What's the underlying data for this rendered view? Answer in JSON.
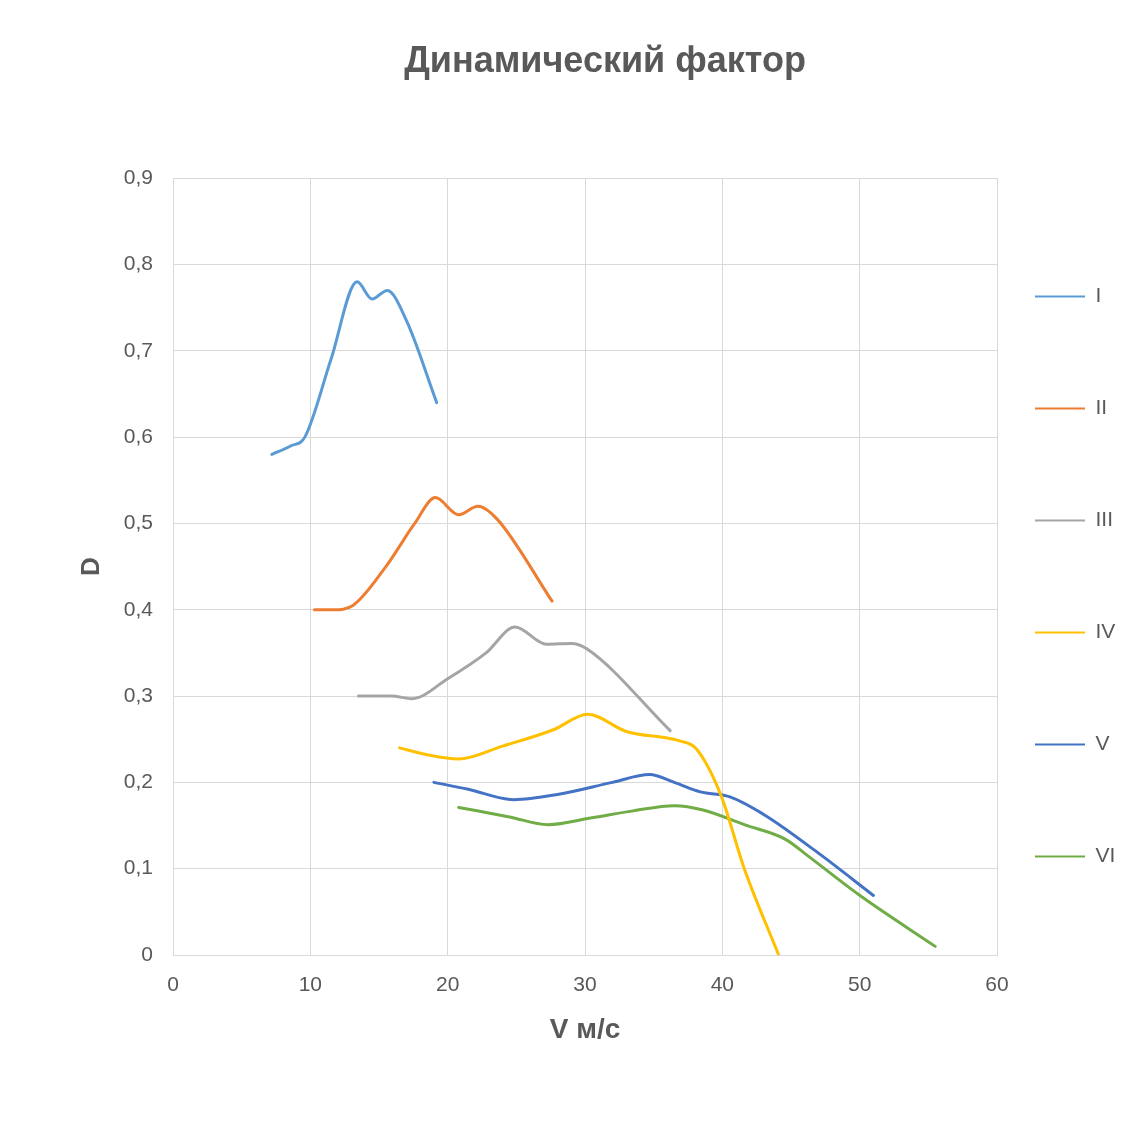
{
  "chart_data": {
    "type": "line",
    "title": "Динамический фактор",
    "xlabel": "V м/с",
    "ylabel": "D",
    "xlim": [
      0,
      60
    ],
    "xticks": [
      0,
      10,
      20,
      30,
      40,
      50,
      60
    ],
    "ylim": [
      0,
      0.9
    ],
    "yticks": [
      0,
      {
        "value": 0.1,
        "label": "0,1"
      },
      {
        "value": 0.2,
        "label": "0,2"
      },
      {
        "value": 0.3,
        "label": "0,3"
      },
      {
        "value": 0.4,
        "label": "0,4"
      },
      {
        "value": 0.5,
        "label": "0,5"
      },
      {
        "value": 0.6,
        "label": "0,6"
      },
      {
        "value": 0.7,
        "label": "0,7"
      },
      {
        "value": 0.8,
        "label": "0,8"
      },
      {
        "value": 0.9,
        "label": "0,9"
      }
    ],
    "grid": true,
    "legend": "right",
    "marker": "none",
    "line_style": "solid",
    "series": [
      {
        "name": "I",
        "color": "#5b9bd5",
        "x": [
          7.2,
          8.6,
          9.6,
          11.5,
          13.4,
          14.5,
          15.6,
          17.0,
          19.2
        ],
        "values": [
          0.58,
          0.59,
          0.6,
          0.69,
          0.78,
          0.76,
          0.77,
          0.735,
          0.64
        ]
      },
      {
        "name": "II",
        "color": "#ed7d31",
        "x": [
          10.3,
          11.7,
          13.1,
          15.5,
          17.6,
          19.1,
          20.8,
          22.2,
          23.6,
          27.6
        ],
        "values": [
          0.4,
          0.4,
          0.405,
          0.45,
          0.5,
          0.53,
          0.51,
          0.52,
          0.505,
          0.41
        ]
      },
      {
        "name": "III",
        "color": "#a5a5a5",
        "x": [
          13.5,
          15.9,
          17.4,
          20.0,
          22.8,
          24.9,
          27.2,
          29.0,
          30.1,
          36.2
        ],
        "values": [
          0.3,
          0.3,
          0.297,
          0.32,
          0.35,
          0.38,
          0.36,
          0.361,
          0.355,
          0.26
        ]
      },
      {
        "name": "IV",
        "color": "#ffc000",
        "x": [
          16.5,
          18.5,
          20.8,
          24.0,
          27.7,
          30.2,
          33.0,
          36.9,
          38.1,
          39.9,
          41.6,
          44.1
        ],
        "values": [
          0.24,
          0.232,
          0.227,
          0.242,
          0.261,
          0.279,
          0.259,
          0.248,
          0.239,
          0.185,
          0.1,
          0
        ]
      },
      {
        "name": "V",
        "color": "#4472c4",
        "x": [
          19.0,
          21.5,
          24.8,
          28.0,
          32.0,
          34.7,
          36.5,
          38.4,
          40.6,
          43.1,
          47.0,
          51.0
        ],
        "values": [
          0.2,
          0.192,
          0.18,
          0.186,
          0.2,
          0.209,
          0.2,
          0.189,
          0.183,
          0.162,
          0.118,
          0.069
        ]
      },
      {
        "name": "VI",
        "color": "#70ad47",
        "x": [
          20.8,
          24.5,
          27.3,
          30.5,
          33.5,
          36.5,
          38.6,
          41.6,
          44.6,
          46.3,
          50.1,
          55.5
        ],
        "values": [
          0.171,
          0.16,
          0.151,
          0.159,
          0.167,
          0.173,
          0.168,
          0.151,
          0.134,
          0.114,
          0.068,
          0.01
        ]
      }
    ]
  }
}
